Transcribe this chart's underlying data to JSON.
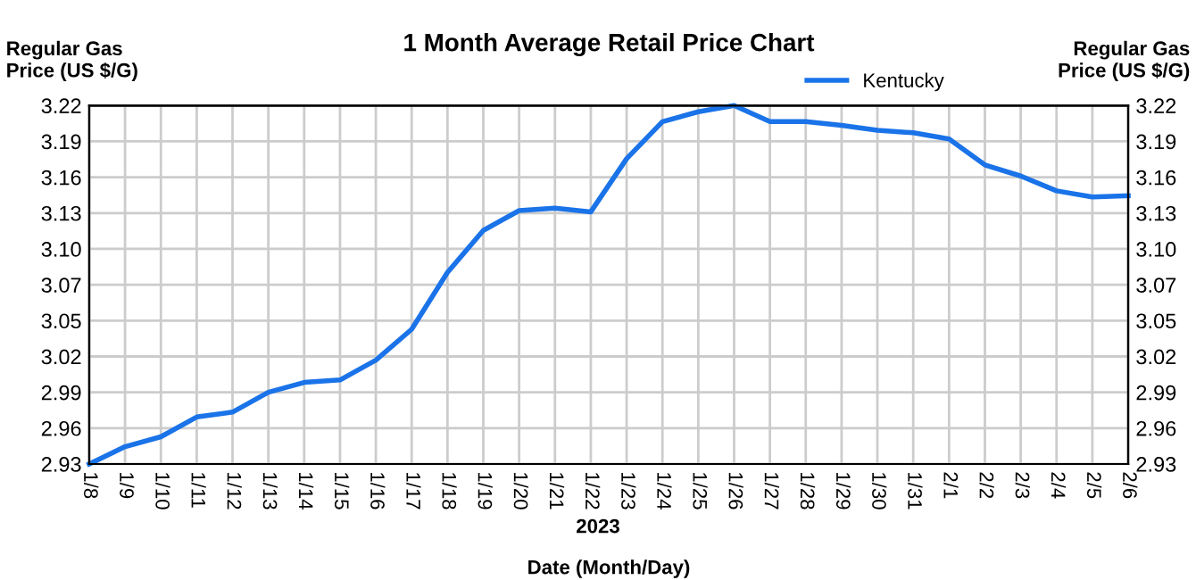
{
  "chart_data": {
    "type": "line",
    "title": "1 Month Average Retail Price Chart",
    "xlabel": "Date (Month/Day)",
    "ylabel": "Regular Gas\nPrice (US $/G)",
    "y2label": "Regular Gas\nPrice (US $/G)",
    "annotations": [
      "2023"
    ],
    "categories": [
      "1/8",
      "1/9",
      "1/10",
      "1/11",
      "1/12",
      "1/13",
      "1/14",
      "1/15",
      "1/16",
      "1/17",
      "1/18",
      "1/19",
      "1/20",
      "1/21",
      "1/22",
      "1/23",
      "1/24",
      "1/25",
      "1/26",
      "1/27",
      "1/28",
      "1/29",
      "1/30",
      "1/31",
      "2/1",
      "2/2",
      "2/3",
      "2/4",
      "2/5",
      "2/6"
    ],
    "series": [
      {
        "name": "Kentucky",
        "color": "#1a73e8",
        "values": [
          2.93,
          2.944,
          2.952,
          2.968,
          2.972,
          2.988,
          2.996,
          2.998,
          3.014,
          3.039,
          3.085,
          3.119,
          3.135,
          3.137,
          3.134,
          3.177,
          3.207,
          3.215,
          3.22,
          3.207,
          3.207,
          3.204,
          3.2,
          3.198,
          3.193,
          3.172,
          3.163,
          3.151,
          3.146,
          3.147
        ]
      }
    ],
    "ylim": [
      2.93,
      3.22
    ],
    "yticks": [
      2.93,
      {
        "value": 2.959,
        "label": "2.96"
      },
      {
        "value": 2.988,
        "label": "2.99"
      },
      {
        "value": 3.017,
        "label": "3.02"
      },
      {
        "value": 3.046,
        "label": "3.05"
      },
      {
        "value": 3.075,
        "label": "3.07"
      },
      {
        "value": 3.104,
        "label": "3.10"
      },
      {
        "value": 3.133,
        "label": "3.13"
      },
      {
        "value": 3.162,
        "label": "3.16"
      },
      {
        "value": 3.191,
        "label": "3.19"
      },
      3.22
    ],
    "y2lim": [
      2.93,
      3.22
    ],
    "y2ticks": [
      2.93,
      {
        "value": 2.959,
        "label": "2.96"
      },
      {
        "value": 2.988,
        "label": "2.99"
      },
      {
        "value": 3.017,
        "label": "3.02"
      },
      {
        "value": 3.046,
        "label": "3.05"
      },
      {
        "value": 3.075,
        "label": "3.07"
      },
      {
        "value": 3.104,
        "label": "3.10"
      },
      {
        "value": 3.133,
        "label": "3.13"
      },
      {
        "value": 3.162,
        "label": "3.16"
      },
      {
        "value": 3.191,
        "label": "3.19"
      },
      3.22
    ],
    "grid": true,
    "legend": "top right",
    "line_style": "solid"
  }
}
